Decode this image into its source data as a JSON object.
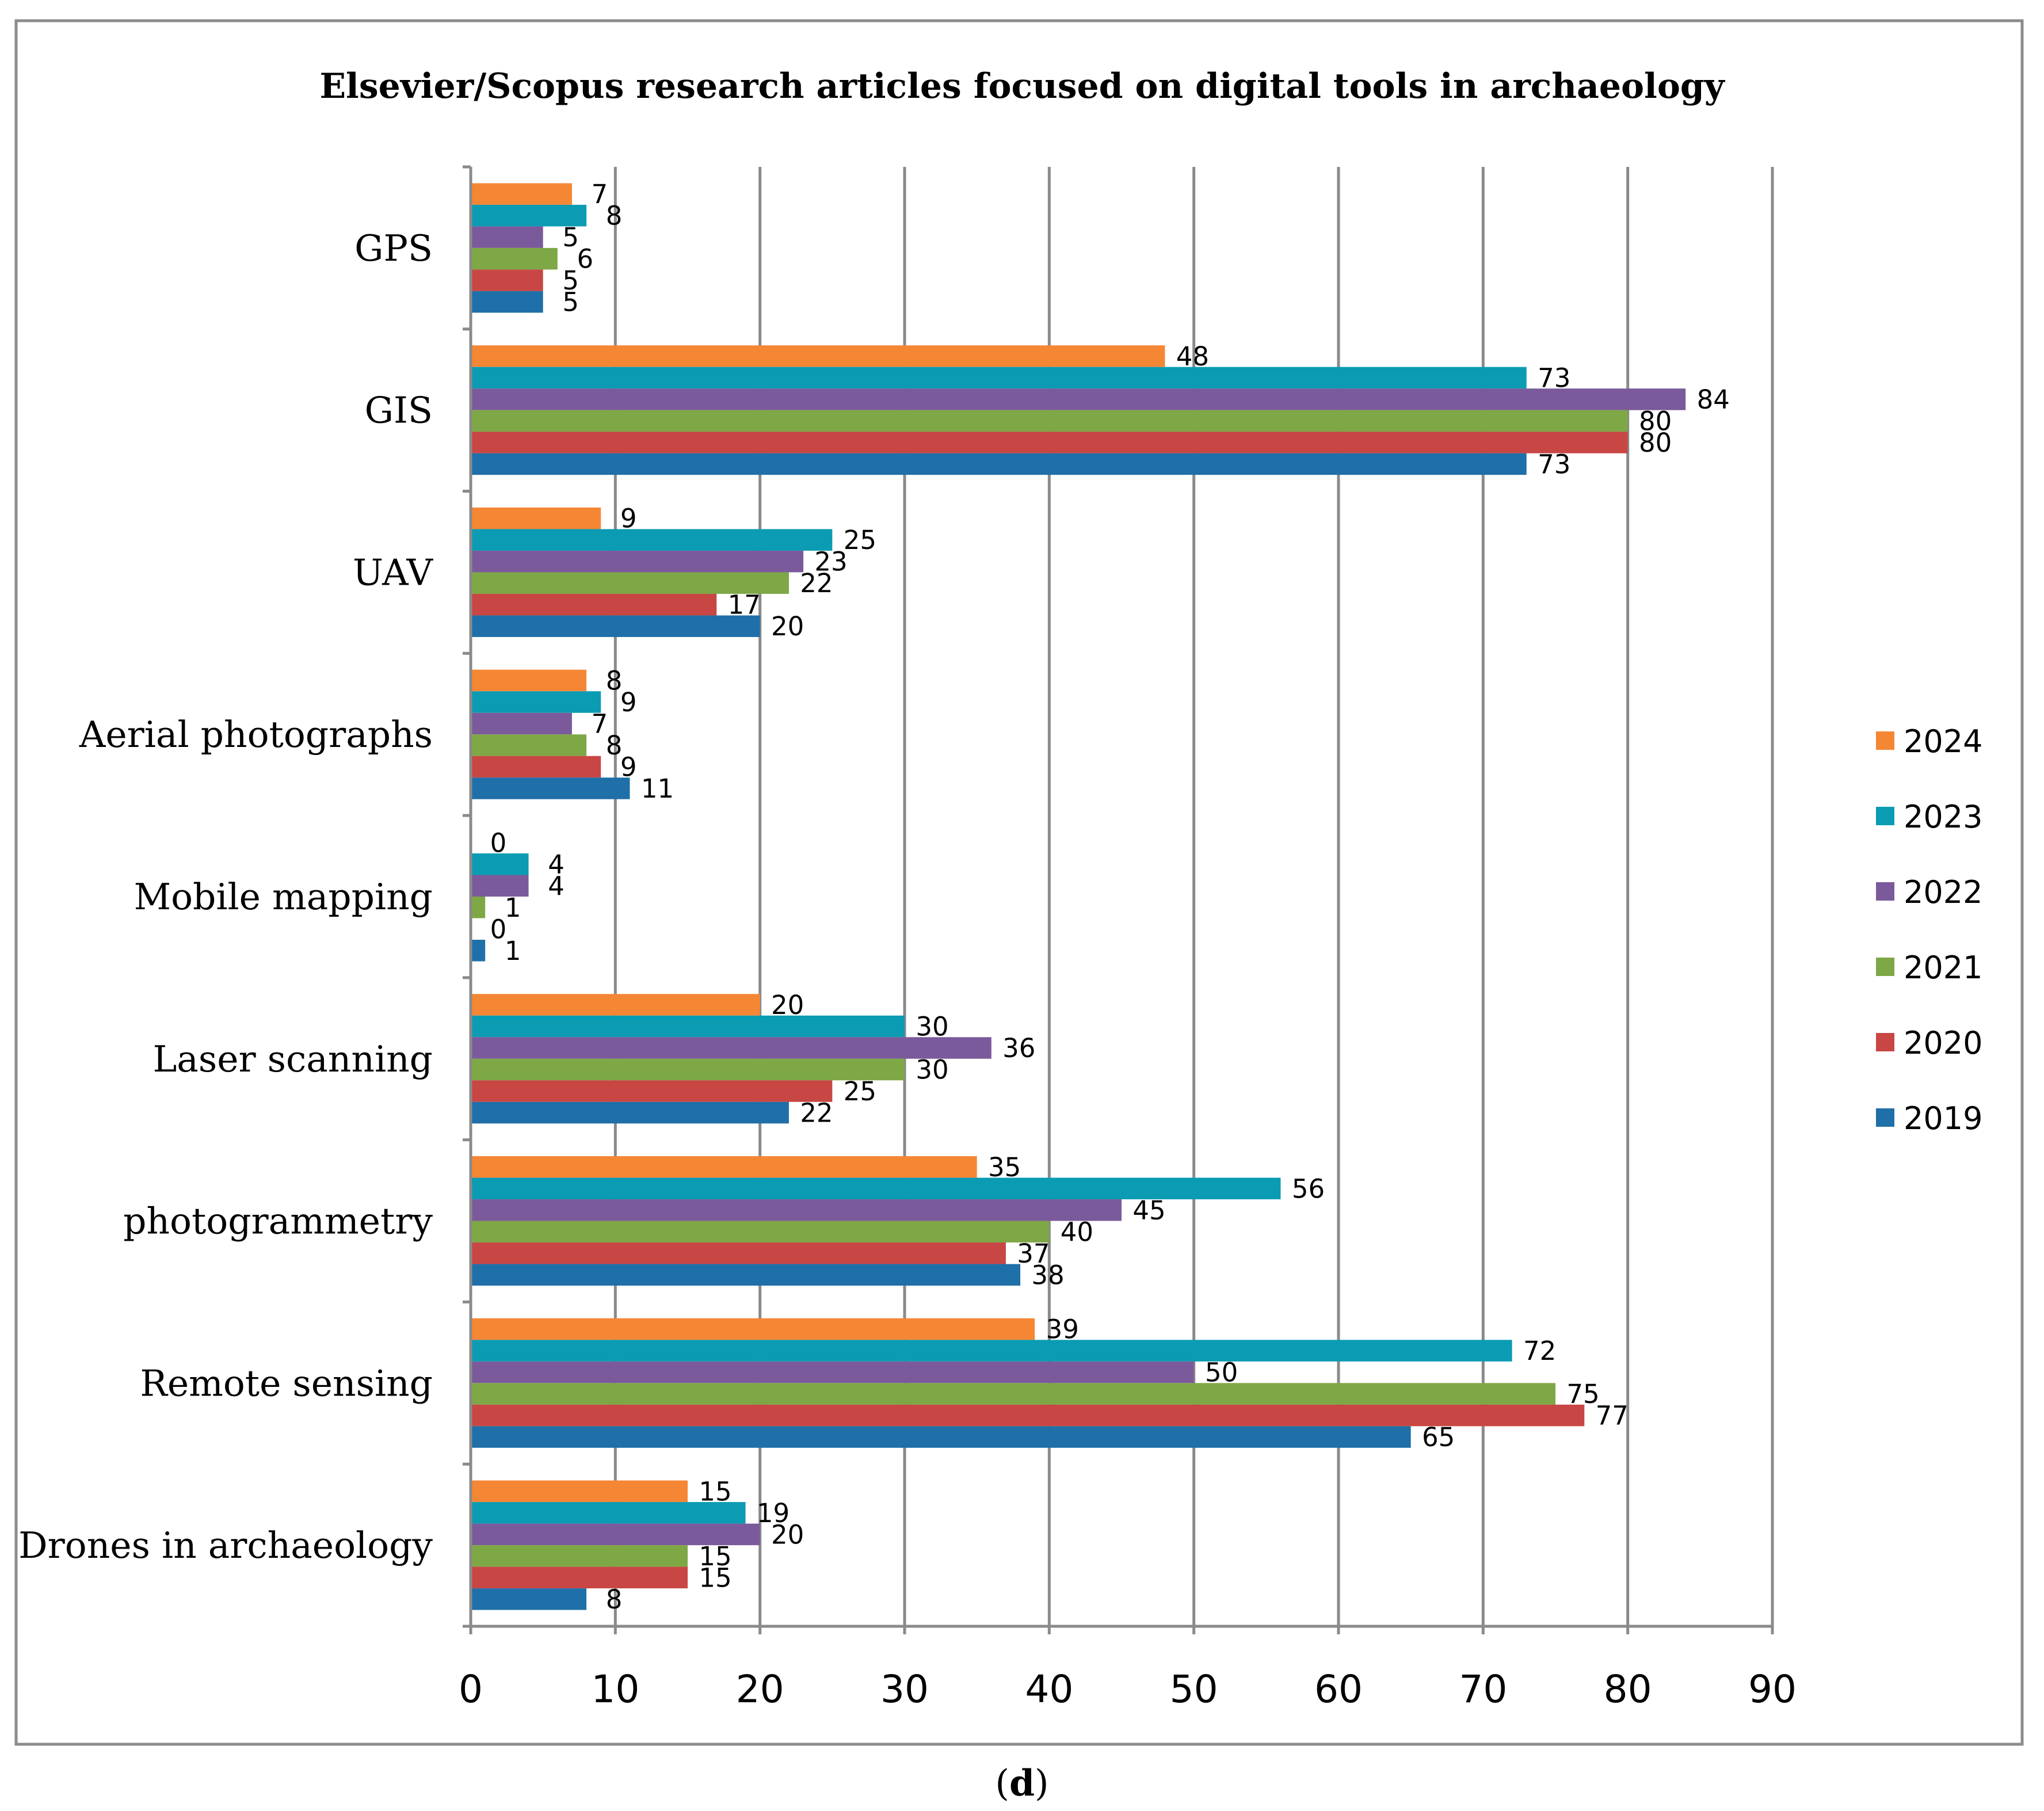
{
  "chart_data": {
    "type": "bar",
    "orientation": "horizontal",
    "title": "Elsevier/Scopus research articles focused on digital tools in archaeology",
    "categories": [
      "GPS",
      "GIS",
      "UAV",
      "Aerial photographs",
      "Mobile mapping",
      "Laser scanning",
      "photogrammetry",
      "Remote sensing",
      "Drones in archaeology"
    ],
    "series": [
      {
        "name": "2024",
        "color": "#F58634",
        "values": [
          7,
          48,
          9,
          8,
          0,
          20,
          35,
          39,
          15
        ]
      },
      {
        "name": "2023",
        "color": "#0B9BB3",
        "values": [
          8,
          73,
          25,
          9,
          4,
          30,
          56,
          72,
          19
        ]
      },
      {
        "name": "2022",
        "color": "#7B5A9B",
        "values": [
          5,
          84,
          23,
          7,
          4,
          36,
          45,
          50,
          20
        ]
      },
      {
        "name": "2021",
        "color": "#7EA745",
        "values": [
          6,
          80,
          22,
          8,
          1,
          30,
          40,
          75,
          15
        ]
      },
      {
        "name": "2020",
        "color": "#C84644",
        "values": [
          5,
          80,
          17,
          9,
          0,
          25,
          37,
          77,
          15
        ]
      },
      {
        "name": "2019",
        "color": "#1F6FA8",
        "values": [
          5,
          73,
          20,
          11,
          1,
          22,
          38,
          65,
          8
        ]
      }
    ],
    "xlim": [
      0,
      90
    ],
    "xticks": [
      "0",
      "10",
      "20",
      "30",
      "40",
      "50",
      "60",
      "70",
      "80",
      "90"
    ],
    "grid": true,
    "legend_position": "right",
    "legend_order": [
      "2024",
      "2023",
      "2022",
      "2021",
      "2020",
      "2019"
    ]
  },
  "caption": {
    "open": "(",
    "letter": "d",
    "close": ")"
  }
}
